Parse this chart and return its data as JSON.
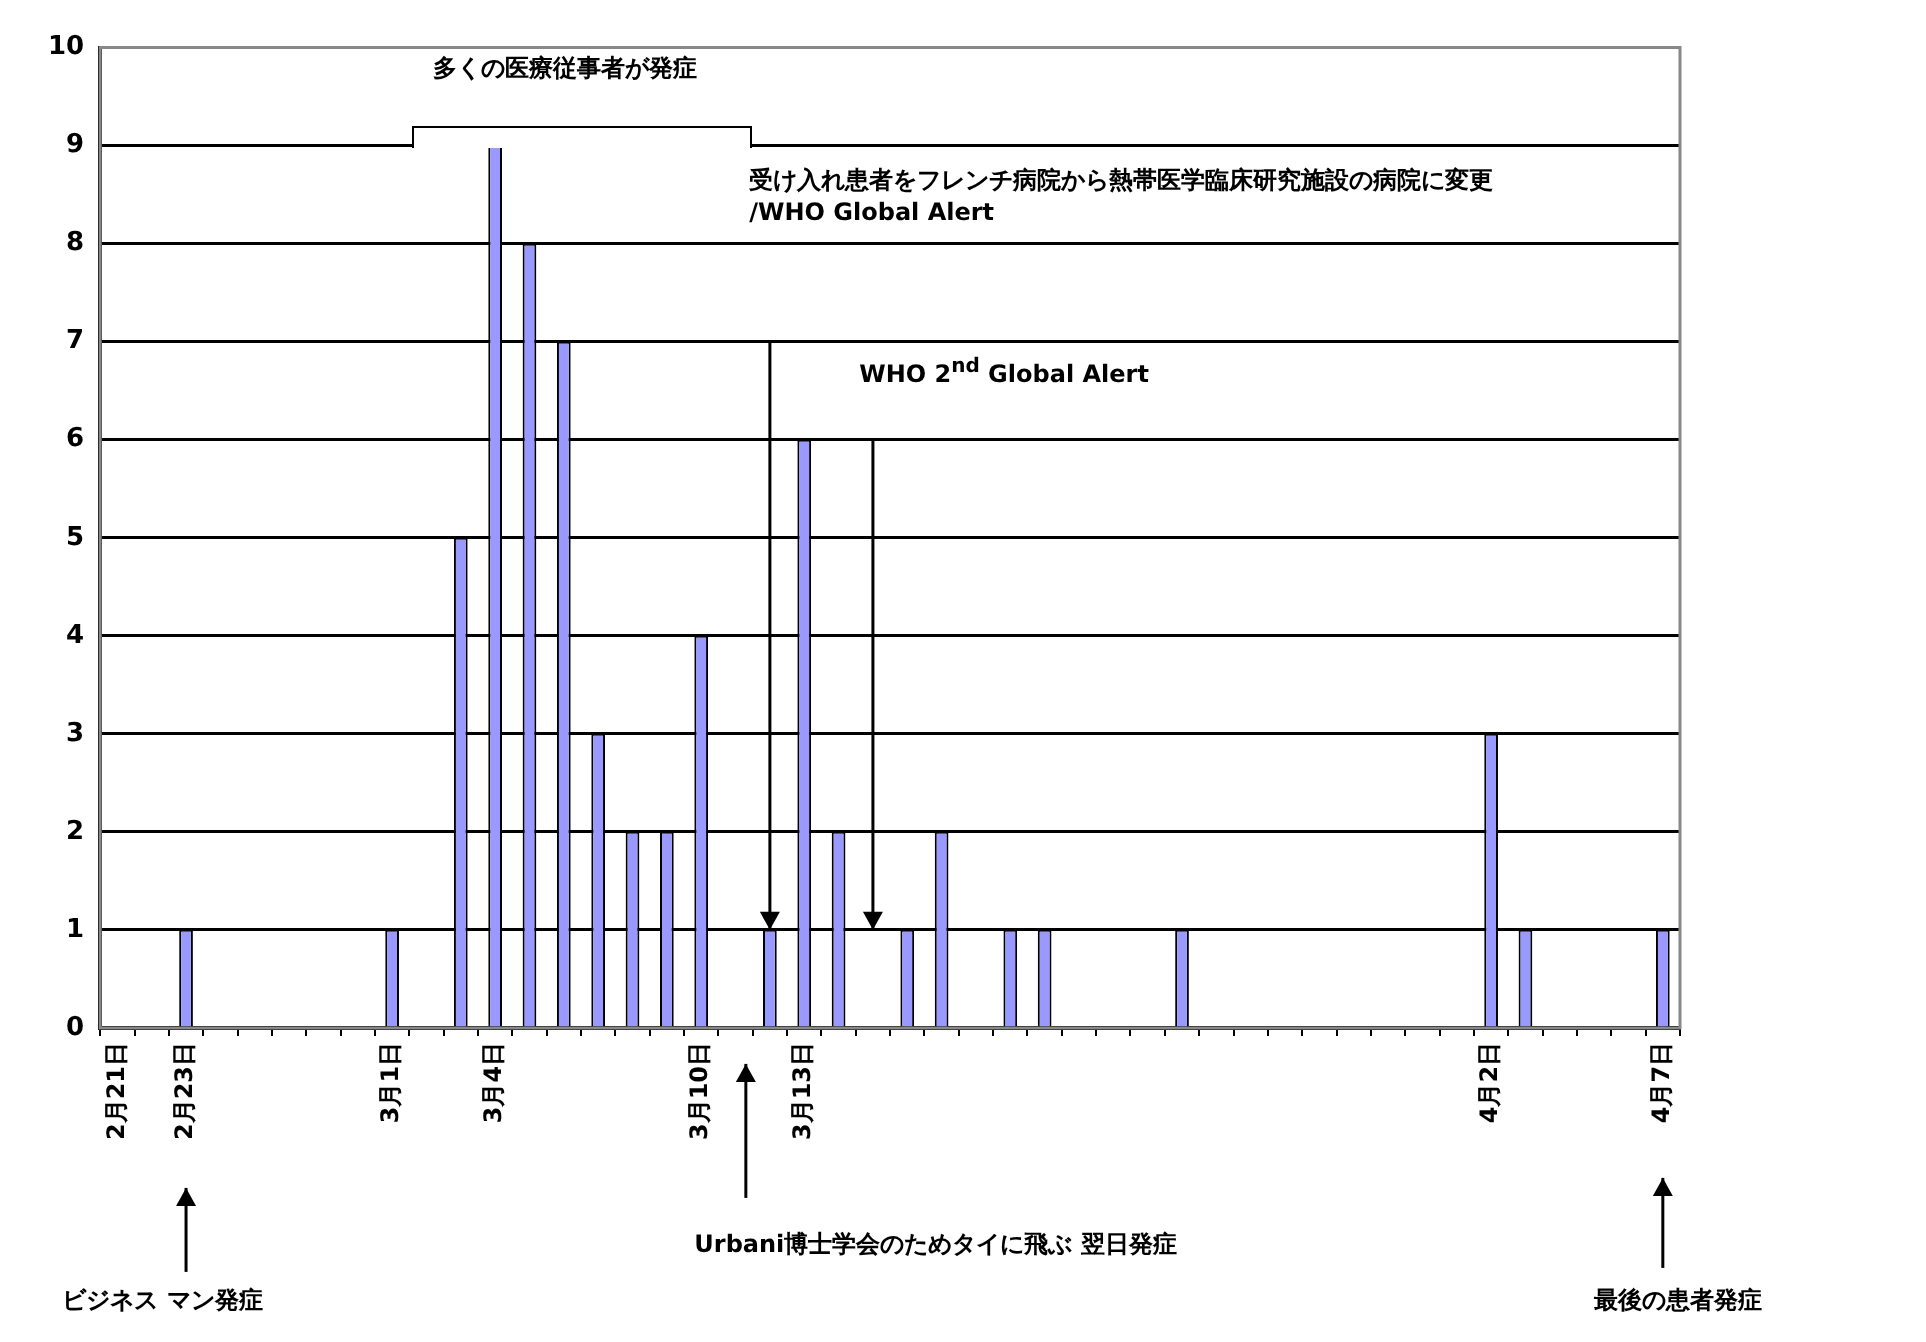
{
  "chart_data": {
    "type": "bar",
    "categories": [
      "2月21日",
      null,
      "2月23日",
      null,
      null,
      null,
      null,
      null,
      "3月1日",
      null,
      null,
      "3月4日",
      null,
      null,
      null,
      null,
      null,
      "3月10日",
      null,
      null,
      "3月13日",
      null,
      null,
      null,
      null,
      null,
      null,
      null,
      null,
      null,
      null,
      null,
      null,
      null,
      null,
      null,
      null,
      null,
      null,
      null,
      "4月2日",
      null,
      null,
      null,
      null,
      "4月7日"
    ],
    "values": [
      0,
      0,
      1,
      0,
      0,
      0,
      0,
      0,
      1,
      0,
      5,
      9,
      8,
      7,
      3,
      2,
      2,
      4,
      0,
      1,
      6,
      2,
      0,
      1,
      2,
      0,
      1,
      1,
      0,
      0,
      0,
      1,
      0,
      0,
      0,
      0,
      0,
      0,
      0,
      0,
      3,
      1,
      0,
      0,
      0,
      1
    ],
    "color": "#9999ff",
    "ylim": [
      0,
      10
    ],
    "yticks": [
      0,
      1,
      2,
      3,
      4,
      5,
      6,
      7,
      8,
      9,
      10
    ],
    "grid": "y",
    "annotations": [
      "多くの医療従事者が発症",
      "受け入れ患者をフレンチ病院から熱帯医学臨床研究施設の病院に変更 /WHO Global Alert",
      "WHO 2$^{nd}$ Global Alert",
      "ビジネス マン発症",
      "Urbani博士学会のためタイに飛ぶ 翌日発症",
      "最後の患者発症"
    ]
  }
}
